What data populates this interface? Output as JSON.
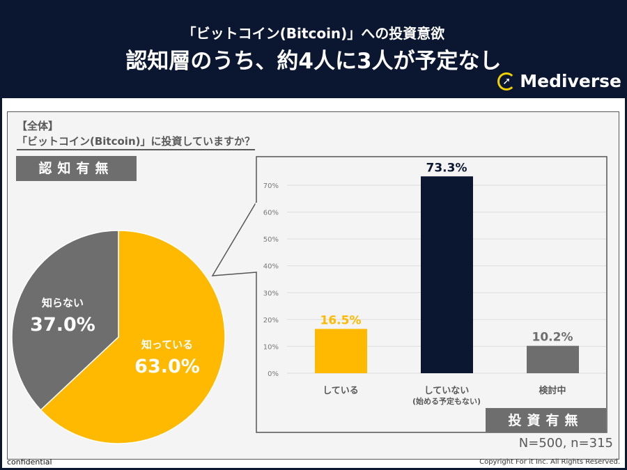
{
  "header": {
    "subtitle": "「ビットコイン(Bitcoin)」への投資意欲",
    "title": "認知層のうち、約4人に3人が予定なし",
    "logo": "Mediverse"
  },
  "scope_label": "【全体】",
  "question": "「ビットコイン(Bitcoin)」に投資していますか？",
  "pie_tag": "認知有無",
  "bar_tag": "投資有無",
  "sample": "N=500, n=315",
  "footer": {
    "left": "confidential",
    "right": "Copyright For it Inc. All Rights Reserved."
  },
  "chart_data": [
    {
      "type": "pie",
      "slices": [
        {
          "label": "知っている",
          "value": 63.0,
          "display": "63.0%",
          "color": "#ffb900"
        },
        {
          "label": "知らない",
          "value": 37.0,
          "display": "37.0%",
          "color": "#6e6e6e"
        }
      ]
    },
    {
      "type": "bar",
      "categories": [
        "している",
        "していない\n(始める予定もない)",
        "検討中"
      ],
      "category_lines": [
        [
          "している"
        ],
        [
          "していない",
          "(始める予定もない)"
        ],
        [
          "検討中"
        ]
      ],
      "values": [
        16.5,
        73.3,
        10.2
      ],
      "labels": [
        "16.5%",
        "73.3%",
        "10.2%"
      ],
      "colors": [
        "#ffb900",
        "#0b1730",
        "#6e6e6e"
      ],
      "ylim": [
        0,
        70
      ],
      "yticks": [
        "0%",
        "10%",
        "20%",
        "30%",
        "40%",
        "50%",
        "60%",
        "70%"
      ],
      "grid": true
    }
  ]
}
